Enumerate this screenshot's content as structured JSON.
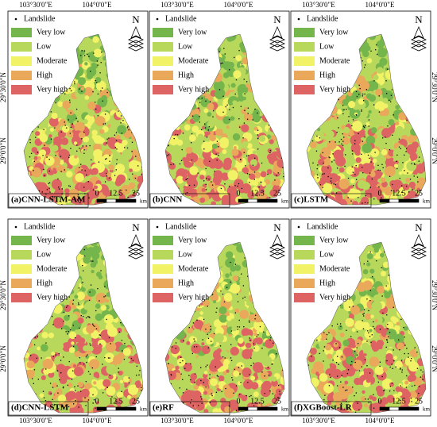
{
  "longitude_labels": [
    "103°30'0\"E",
    "104°0'0\"E"
  ],
  "latitude_labels": [
    "29°30'0\"N",
    "29°0'0\"N"
  ],
  "legend": {
    "landslide": "Landslide",
    "classes": [
      {
        "name": "Very low",
        "color": "#74b54c"
      },
      {
        "name": "Low",
        "color": "#b8d85c"
      },
      {
        "name": "Moderate",
        "color": "#f2f266"
      },
      {
        "name": "High",
        "color": "#e9a85a"
      },
      {
        "name": "Very high",
        "color": "#de6464"
      }
    ]
  },
  "north": "N",
  "scale": {
    "ticks": [
      0,
      12.5,
      25
    ],
    "unit": "km"
  },
  "panels": [
    {
      "label": "(a)CNN-LSTM-AM"
    },
    {
      "label": "(b)CNN"
    },
    {
      "label": "(c)LSTM"
    },
    {
      "label": "(d)CNN-LSTM"
    },
    {
      "label": "(e)RF"
    },
    {
      "label": "(f)XGBoost-LR"
    }
  ]
}
